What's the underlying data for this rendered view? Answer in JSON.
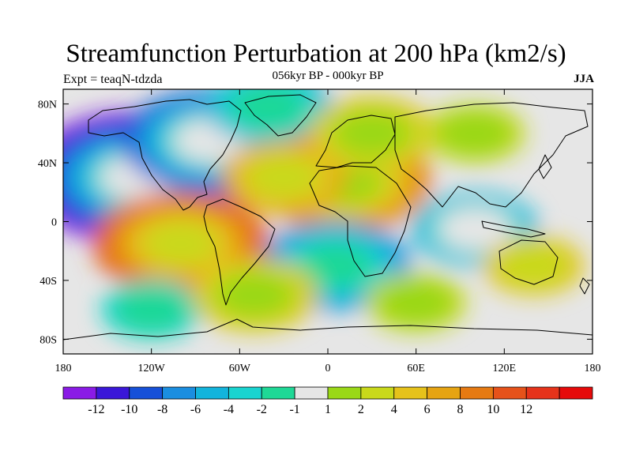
{
  "title": "Streamfunction Perturbation at 200 hPa (km2/s)",
  "experiment": "Expt = teaqN-tdzda",
  "period": "056kyr BP - 000kyr BP",
  "season": "JJA",
  "lat_ticks": [
    {
      "label": "80N",
      "value": 80
    },
    {
      "label": "40N",
      "value": 40
    },
    {
      "label": "0",
      "value": 0
    },
    {
      "label": "40S",
      "value": -40
    },
    {
      "label": "80S",
      "value": -80
    }
  ],
  "lon_ticks": [
    {
      "label": "180",
      "value": -180
    },
    {
      "label": "120W",
      "value": -120
    },
    {
      "label": "60W",
      "value": -60
    },
    {
      "label": "0",
      "value": 0
    },
    {
      "label": "60E",
      "value": 60
    },
    {
      "label": "120E",
      "value": 120
    },
    {
      "label": "180",
      "value": 180
    }
  ],
  "colorbar": {
    "colors": [
      "#8a1be6",
      "#3a17d8",
      "#1650d8",
      "#1a8ee0",
      "#12b4dc",
      "#19d4d0",
      "#1ed896",
      "#e6e6e6",
      "#9ad817",
      "#c9d91a",
      "#e6c21a",
      "#e6a412",
      "#e67a12",
      "#e6521a",
      "#e6331a",
      "#e60a0a"
    ],
    "labels": [
      {
        "text": "-12",
        "boundary": 1
      },
      {
        "text": "-10",
        "boundary": 2
      },
      {
        "text": "-8",
        "boundary": 3
      },
      {
        "text": "-6",
        "boundary": 4
      },
      {
        "text": "-4",
        "boundary": 5
      },
      {
        "text": "-2",
        "boundary": 6
      },
      {
        "text": "-1",
        "boundary": 7
      },
      {
        "text": "1",
        "boundary": 8
      },
      {
        "text": "2",
        "boundary": 9
      },
      {
        "text": "4",
        "boundary": 10
      },
      {
        "text": "6",
        "boundary": 11
      },
      {
        "text": "8",
        "boundary": 12
      },
      {
        "text": "10",
        "boundary": 13
      },
      {
        "text": "12",
        "boundary": 14
      }
    ]
  },
  "field_features": [
    {
      "name": "north-pacific-low",
      "lon": -130,
      "lat": 30,
      "level": -13
    },
    {
      "name": "north-america-low",
      "lon": -80,
      "lat": 55,
      "level": -9
    },
    {
      "name": "north-atlantic-low",
      "lon": -40,
      "lat": 78,
      "level": -6
    },
    {
      "name": "sahara-high",
      "lon": 10,
      "lat": 28,
      "level": 9
    },
    {
      "name": "atlantic-high",
      "lon": -30,
      "lat": 30,
      "level": 6
    },
    {
      "name": "europe-high",
      "lon": 30,
      "lat": 60,
      "level": 5
    },
    {
      "name": "siberia-high",
      "lon": 100,
      "lat": 60,
      "level": 3
    },
    {
      "name": "southeast-pacific-high",
      "lon": -100,
      "lat": -15,
      "level": 10
    },
    {
      "name": "south-atlantic-low",
      "lon": 5,
      "lat": -30,
      "level": -8
    },
    {
      "name": "indian-ocean-low",
      "lon": 100,
      "lat": -5,
      "level": -5
    },
    {
      "name": "australia-high",
      "lon": 140,
      "lat": -30,
      "level": 4
    },
    {
      "name": "southern-ocean-low",
      "lon": -120,
      "lat": -60,
      "level": -4
    },
    {
      "name": "south-america-high",
      "lon": -50,
      "lat": -50,
      "level": 5
    },
    {
      "name": "south-indian-high",
      "lon": 60,
      "lat": -55,
      "level": 3
    }
  ]
}
